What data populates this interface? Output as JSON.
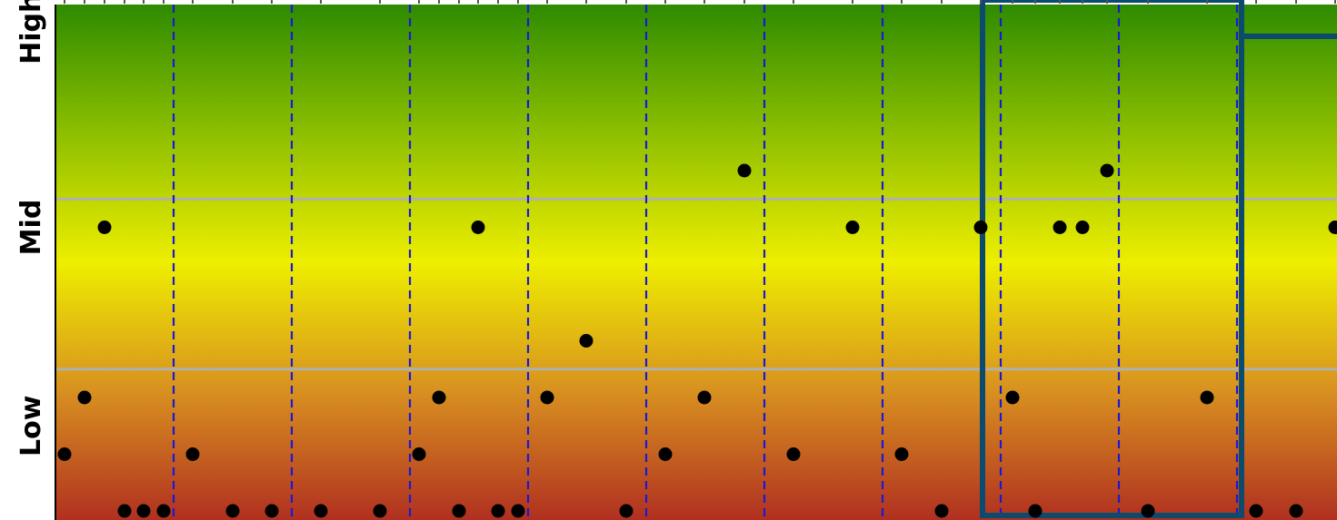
{
  "chart_data": {
    "type": "scatter",
    "title": "",
    "xlabel": "",
    "ylabel": "",
    "y_levels": [
      0,
      1,
      2,
      3,
      4,
      5,
      6,
      7,
      8,
      9
    ],
    "y_tick_labels": [
      {
        "label": "Low",
        "level": 1.5
      },
      {
        "label": "Mid",
        "level": 5
      },
      {
        "label": "High",
        "level": 8.5
      }
    ],
    "xlim": [
      0,
      1410
    ],
    "ylim": [
      0,
      9
    ],
    "band_boundaries": [
      3,
      6
    ],
    "interval_boundaries": [
      130,
      260,
      390,
      520,
      650,
      780,
      910,
      1040,
      1170,
      1300
    ],
    "highlight_range": [
      1020,
      1305
    ],
    "grid": true,
    "points": [
      {
        "x": 10,
        "y": 1
      },
      {
        "x": 32,
        "y": 2
      },
      {
        "x": 54,
        "y": 5
      },
      {
        "x": 76,
        "y": 0
      },
      {
        "x": 97,
        "y": 0
      },
      {
        "x": 119,
        "y": 0
      },
      {
        "x": 151,
        "y": 1
      },
      {
        "x": 195,
        "y": 0
      },
      {
        "x": 238,
        "y": 0
      },
      {
        "x": 292,
        "y": 0
      },
      {
        "x": 357,
        "y": 0
      },
      {
        "x": 400,
        "y": 1
      },
      {
        "x": 422,
        "y": 2
      },
      {
        "x": 444,
        "y": 0
      },
      {
        "x": 465,
        "y": 5
      },
      {
        "x": 487,
        "y": 0
      },
      {
        "x": 509,
        "y": 0
      },
      {
        "x": 541,
        "y": 2
      },
      {
        "x": 584,
        "y": 3
      },
      {
        "x": 628,
        "y": 0
      },
      {
        "x": 671,
        "y": 1
      },
      {
        "x": 714,
        "y": 2
      },
      {
        "x": 758,
        "y": 6
      },
      {
        "x": 812,
        "y": 1
      },
      {
        "x": 877,
        "y": 5
      },
      {
        "x": 931,
        "y": 1
      },
      {
        "x": 975,
        "y": 0
      },
      {
        "x": 1018,
        "y": 5
      },
      {
        "x": 1053,
        "y": 2
      },
      {
        "x": 1078,
        "y": 0
      },
      {
        "x": 1105,
        "y": 5
      },
      {
        "x": 1130,
        "y": 5
      },
      {
        "x": 1157,
        "y": 6
      },
      {
        "x": 1202,
        "y": 0
      },
      {
        "x": 1267,
        "y": 2
      },
      {
        "x": 1321,
        "y": 0
      },
      {
        "x": 1365,
        "y": 0
      },
      {
        "x": 1408,
        "y": 5
      }
    ],
    "colors": {
      "gradient": [
        "#2e8b00",
        "#8dbf00",
        "#eeee00",
        "#d89020",
        "#b03020"
      ],
      "points": "#000000",
      "interval_lines": "#1a1ad0",
      "band_lines": "#b0b0b0",
      "highlight": "#0c4a6e"
    }
  }
}
